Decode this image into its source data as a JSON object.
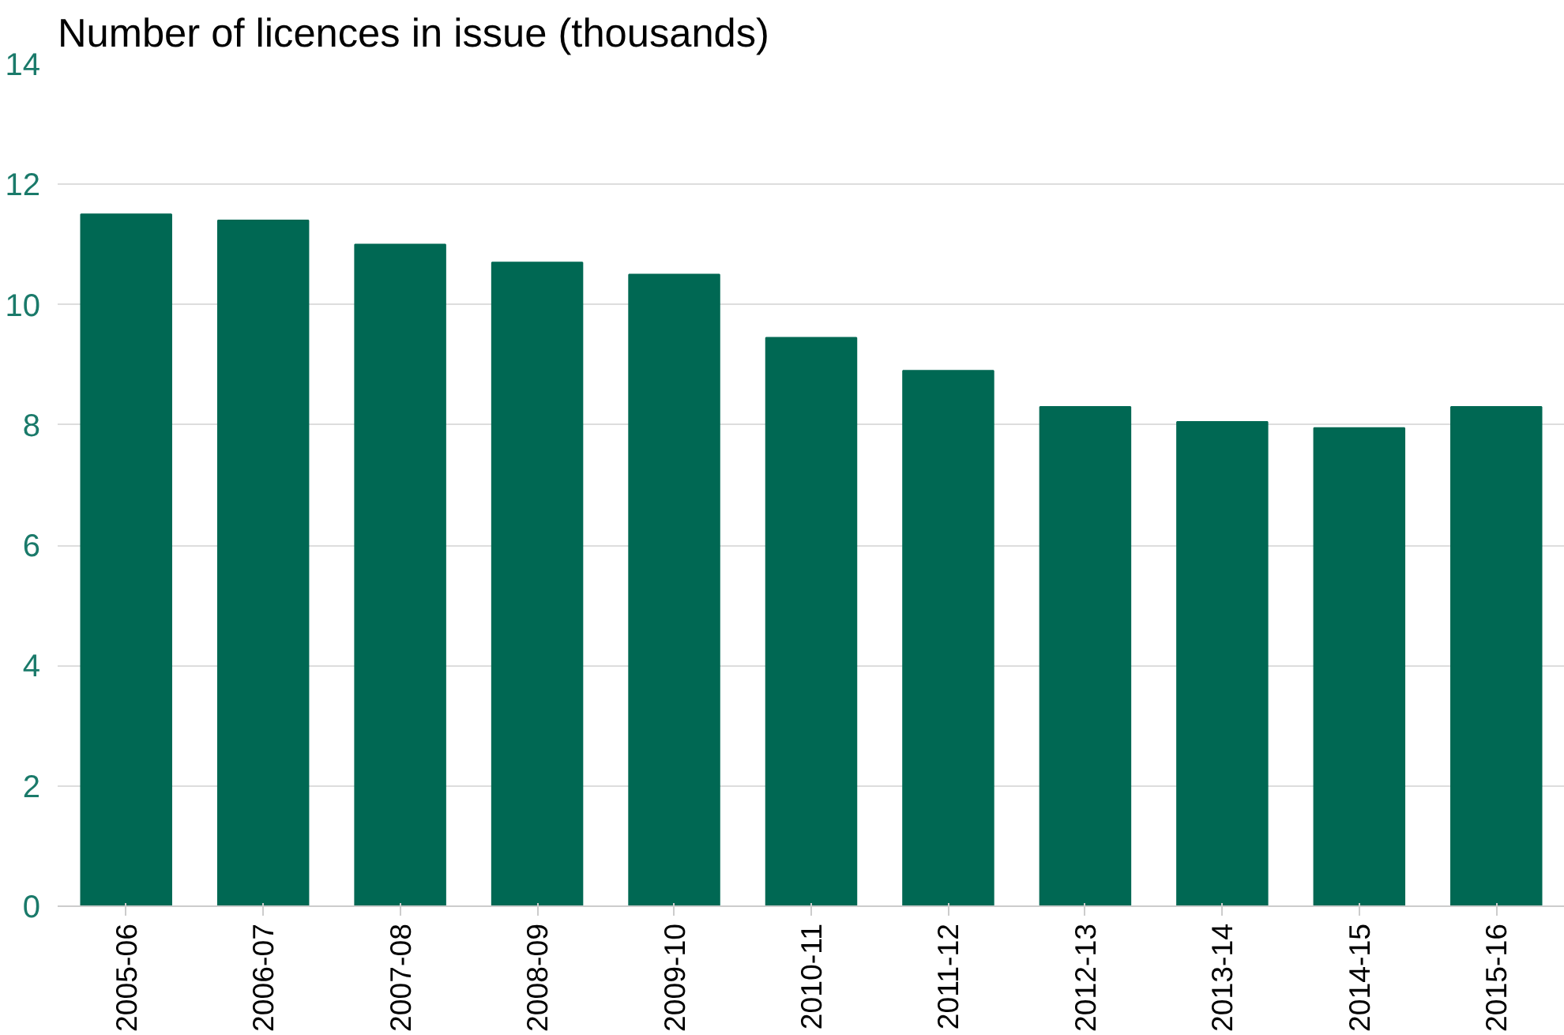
{
  "chart_data": {
    "type": "bar",
    "title": "Number of licences in issue (thousands)",
    "categories": [
      "2005-06",
      "2006-07",
      "2007-08",
      "2008-09",
      "2009-10",
      "2010-11",
      "2011-12",
      "2012-13",
      "2013-14",
      "2014-15",
      "2015-16"
    ],
    "values": [
      11.5,
      11.4,
      11.0,
      10.7,
      10.5,
      9.45,
      8.9,
      8.3,
      8.05,
      7.95,
      8.3
    ],
    "color": "#006853",
    "ylim": [
      0,
      14
    ],
    "yticks": [
      0,
      2,
      4,
      6,
      8,
      10,
      12,
      14
    ],
    "grid": "y"
  }
}
